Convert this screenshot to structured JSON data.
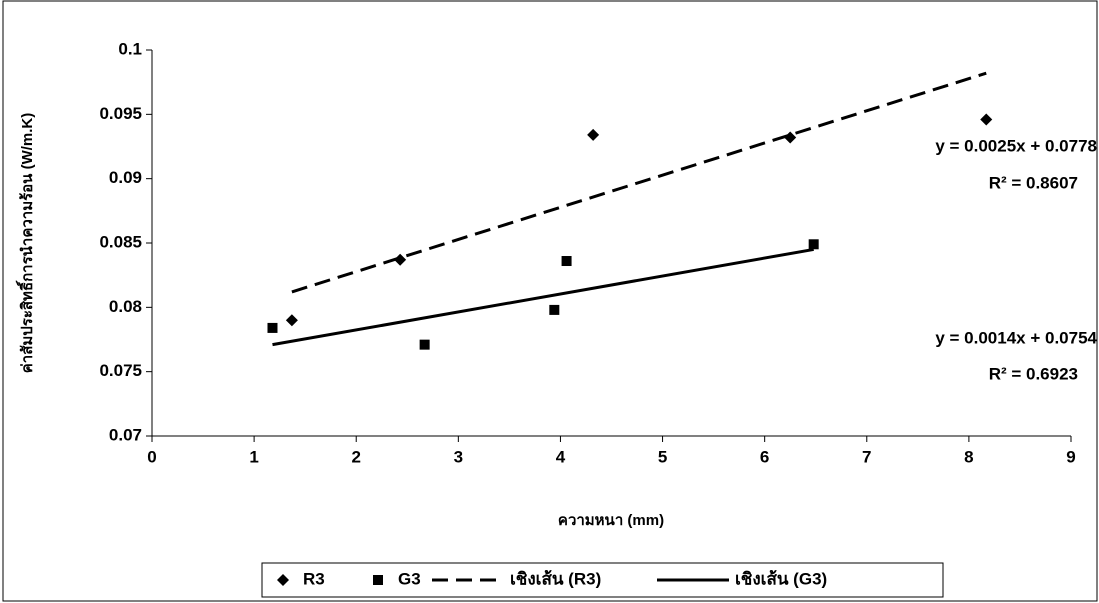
{
  "chart_data": {
    "type": "scatter",
    "x_label": "ความหนา (mm)",
    "y_label": "ค่าสัมประสิทธิ์การนำความร้อน (W/m.K)",
    "xlim": [
      0,
      9
    ],
    "xticks": [
      0,
      1,
      2,
      3,
      4,
      5,
      6,
      7,
      8,
      9
    ],
    "ylim": [
      0.07,
      0.1
    ],
    "yticks": [
      0.07,
      0.075,
      0.08,
      0.085,
      0.09,
      0.095,
      0.1
    ],
    "grid": false,
    "legend": "bottom",
    "series": [
      {
        "name": "R3",
        "color": "#000000",
        "marker": "diamond",
        "x": [
          1.37,
          2.43,
          4.32,
          6.25,
          8.17
        ],
        "values": [
          0.079,
          0.0837,
          0.0934,
          0.0932,
          0.0946
        ]
      },
      {
        "name": "G3",
        "color": "#000000",
        "marker": "square",
        "x": [
          1.18,
          2.67,
          3.94,
          4.06,
          6.48
        ],
        "values": [
          0.0784,
          0.0771,
          0.0798,
          0.0836,
          0.0849
        ]
      },
      {
        "name": "เชิงเส้น (R3)",
        "color": "#000000",
        "line": "dashed",
        "x": [
          1.37,
          8.17
        ],
        "values": [
          0.0812,
          0.0982
        ]
      },
      {
        "name": "เชิงเส้น (G3)",
        "color": "#000000",
        "line": "solid",
        "x": [
          1.18,
          6.48
        ],
        "values": [
          0.0771,
          0.0845
        ]
      }
    ],
    "annotations": [
      "y = 0.0025x + 0.0778",
      "R² = 0.8607",
      "y = 0.0014x + 0.0754",
      "R² = 0.6923"
    ]
  }
}
